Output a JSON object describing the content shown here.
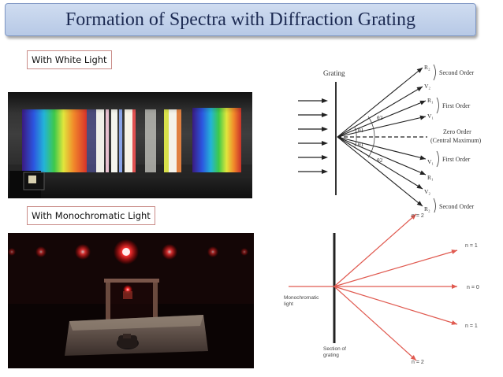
{
  "slide": {
    "title": "Formation of Spectra with Diffraction Grating",
    "label_white": "With White Light",
    "label_mono": "With Monochromatic Light"
  },
  "grating_diagram": {
    "grating_label": "Grating",
    "rays": [
      {
        "label": "R₂",
        "order_label": "Second Order"
      },
      {
        "label": "V₂",
        "order_label": ""
      },
      {
        "label": "R₁",
        "order_label": "First Order"
      },
      {
        "label": "V₁",
        "order_label": ""
      },
      {
        "label": "V₁",
        "order_label": "First Order"
      },
      {
        "label": "R₁",
        "order_label": ""
      },
      {
        "label": "V₂",
        "order_label": ""
      },
      {
        "label": "R₂",
        "order_label": "Second Order"
      }
    ],
    "zero_order_label": "Zero Order",
    "central_max_label": "(Central Maximum)",
    "angle_labels": [
      "θ2",
      "θ1",
      "θ1",
      "θ2"
    ]
  },
  "mono_diagram": {
    "orders": [
      "n = 2",
      "n = 1",
      "n = 0",
      "n = 1",
      "n = 2"
    ],
    "source_label": [
      "Monochromatic",
      "light"
    ],
    "grating_label": [
      "Section of",
      "grating"
    ]
  },
  "colors": {
    "title_text": "#1c2a52",
    "title_bg": "#c4d3ec",
    "label_border": "#c98c88",
    "red_ray": "#e05a50",
    "laser_red": "#ff2a2a"
  },
  "spectrum_bands": [
    {
      "color": "#3c1c8c"
    },
    {
      "color": "#2a4fd6"
    },
    {
      "color": "#1fa4d8"
    },
    {
      "color": "#38c44a"
    },
    {
      "color": "#d9e43a"
    },
    {
      "color": "#f08a2a"
    },
    {
      "color": "#e23a2a"
    }
  ]
}
